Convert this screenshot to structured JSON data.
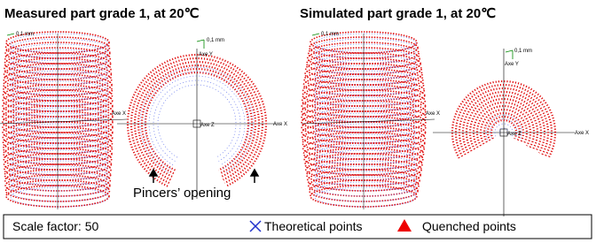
{
  "titles": [
    "Measured part grade 1, at 20℃",
    "Simulated part grade 1, at 20℃"
  ],
  "panels": [
    {
      "scale": "0,1 mm",
      "axis_x": "Axe X"
    },
    {
      "scale": "0,1 mm",
      "axis_y": "Axe Y",
      "axis_x": "Axe X",
      "axis_z": "Axe Z",
      "annotation": "Pincers’ opening"
    },
    {
      "scale": "0,1 mm",
      "axis_x": "Axe X"
    },
    {
      "scale": "0,1 mm",
      "axis_y": "Axe Y",
      "axis_x": "Axe X",
      "axis_z": "Axe Z"
    }
  ],
  "legend": {
    "scale_factor": "Scale factor: 50",
    "items": [
      "Theoretical points",
      "Quenched points"
    ]
  }
}
